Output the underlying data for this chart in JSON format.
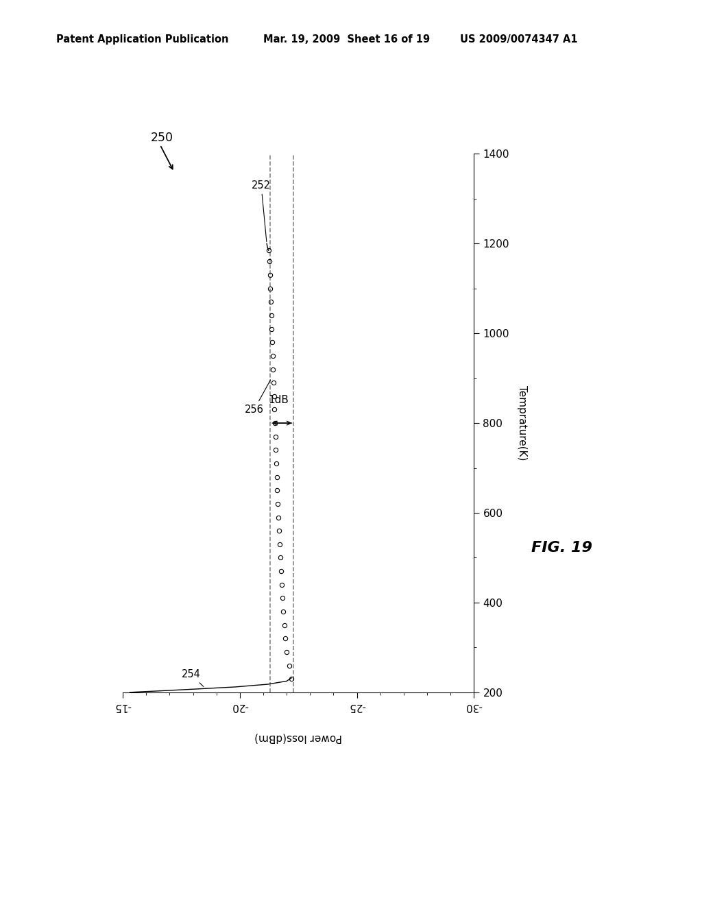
{
  "header_left": "Patent Application Publication",
  "header_mid": "Mar. 19, 2009  Sheet 16 of 19",
  "header_right": "US 2009/0074347 A1",
  "fig_label": "FIG. 19",
  "xlabel_rotated": "Temprature(K)",
  "ylabel_rotated": "Power loss(dBm)",
  "temp_min": 200,
  "temp_max": 1400,
  "power_min": -30,
  "power_max": -15,
  "temp_ticks": [
    200,
    400,
    600,
    800,
    1000,
    1200,
    1400
  ],
  "power_ticks": [
    -15,
    -20,
    -25,
    -30
  ],
  "dashed_line1": -21.3,
  "dashed_line2": -22.3,
  "data_temp": [
    230,
    260,
    290,
    320,
    350,
    380,
    410,
    440,
    470,
    500,
    530,
    560,
    590,
    620,
    650,
    680,
    710,
    740,
    770,
    800,
    830,
    860,
    890,
    920,
    950,
    980,
    1010,
    1040,
    1070,
    1100,
    1130,
    1160,
    1185
  ],
  "data_power": [
    -22.2,
    -22.1,
    -22.0,
    -21.95,
    -21.9,
    -21.85,
    -21.82,
    -21.78,
    -21.75,
    -21.72,
    -21.7,
    -21.67,
    -21.65,
    -21.62,
    -21.6,
    -21.58,
    -21.56,
    -21.54,
    -21.52,
    -21.5,
    -21.48,
    -21.46,
    -21.44,
    -21.42,
    -21.4,
    -21.38,
    -21.36,
    -21.34,
    -21.32,
    -21.3,
    -21.28,
    -21.25,
    -21.22
  ],
  "curve_steep_temp": [
    200,
    203,
    207,
    212,
    218,
    225,
    232
  ],
  "curve_steep_power": [
    -15.3,
    -16.5,
    -18.0,
    -19.8,
    -21.2,
    -22.0,
    -22.2
  ],
  "curve_break_temp": [
    1185,
    1192,
    1200
  ],
  "curve_break_power": [
    -21.22,
    -21.18,
    -21.15
  ],
  "background_color": "#ffffff",
  "line_color": "#000000",
  "dashed_color": "#888888"
}
